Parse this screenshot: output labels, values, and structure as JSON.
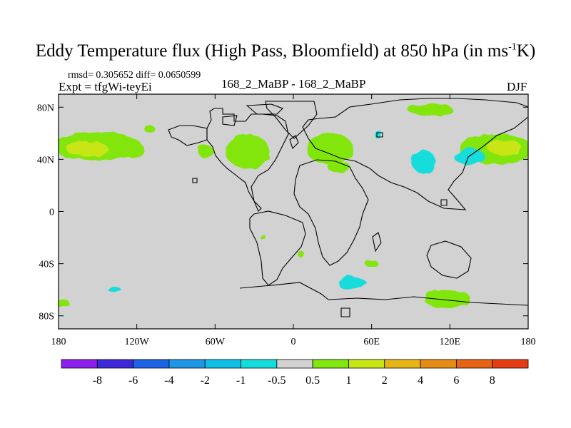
{
  "chart_data": {
    "type": "heatmap",
    "title": "Eddy Temperature flux (High Pass, Bloomfield) at 850 hPa (in ms",
    "title_superscript": "-1",
    "title_suffix": "K)",
    "stats_line": "rmsd= 0.305652 diff= 0.0650599",
    "expt_line": "Expt = tfgWi-teyEi",
    "center_label": "168_2_MaBP - 168_2_MaBP",
    "season_label": "DJF",
    "x_ticks": [
      {
        "value": -180,
        "label": "180"
      },
      {
        "value": -120,
        "label": "120W"
      },
      {
        "value": -60,
        "label": "60W"
      },
      {
        "value": 0,
        "label": "0"
      },
      {
        "value": 60,
        "label": "60E"
      },
      {
        "value": 120,
        "label": "120E"
      },
      {
        "value": 180,
        "label": "180"
      }
    ],
    "y_ticks": [
      {
        "value": 80,
        "label": "80N"
      },
      {
        "value": 40,
        "label": "40N"
      },
      {
        "value": 0,
        "label": "0"
      },
      {
        "value": -40,
        "label": "40S"
      },
      {
        "value": -80,
        "label": "80S"
      }
    ],
    "xlim": [
      -180,
      180
    ],
    "ylim": [
      -90,
      90
    ],
    "colorbar": {
      "labels": [
        "-8",
        "-6",
        "-4",
        "-2",
        "-1",
        "-0.5",
        "0.5",
        "1",
        "2",
        "4",
        "6",
        "8"
      ],
      "colors": [
        "#8c1eee",
        "#3c28d8",
        "#1e64e6",
        "#1e96e6",
        "#0fbee6",
        "#14dcdc",
        "#d2d2d2",
        "#82e60f",
        "#c8e614",
        "#e6b414",
        "#e68c14",
        "#e66414",
        "#e63c14"
      ]
    },
    "fields": [
      {
        "level": "1",
        "color": "#82e60f",
        "lon": -150,
        "lat": 50,
        "rx": 34,
        "ry": 11
      },
      {
        "level": "2",
        "color": "#c8e614",
        "lon": -158,
        "lat": 48,
        "rx": 16,
        "ry": 6
      },
      {
        "level": "1",
        "color": "#82e60f",
        "lon": -122,
        "lat": 47,
        "rx": 8,
        "ry": 6
      },
      {
        "level": "1",
        "color": "#82e60f",
        "lon": -110,
        "lat": 63,
        "rx": 4,
        "ry": 3
      },
      {
        "level": "1",
        "color": "#82e60f",
        "lon": -67,
        "lat": 46,
        "rx": 6,
        "ry": 5
      },
      {
        "level": "1",
        "color": "#82e60f",
        "lon": -35,
        "lat": 46,
        "rx": 17,
        "ry": 13
      },
      {
        "level": "1",
        "color": "#82e60f",
        "lon": 28,
        "lat": 48,
        "rx": 18,
        "ry": 12
      },
      {
        "level": "1",
        "color": "#82e60f",
        "lon": 35,
        "lat": 34,
        "rx": 9,
        "ry": 4
      },
      {
        "level": "1",
        "color": "#82e60f",
        "lon": 105,
        "lat": 78,
        "rx": 17,
        "ry": 5
      },
      {
        "level": "1",
        "color": "#82e60f",
        "lon": 155,
        "lat": 48,
        "rx": 28,
        "ry": 12
      },
      {
        "level": "2",
        "color": "#c8e614",
        "lon": 162,
        "lat": 49,
        "rx": 13,
        "ry": 6
      },
      {
        "level": "-0.5",
        "color": "#14dcdc",
        "lon": 100,
        "lat": 38,
        "rx": 9,
        "ry": 9
      },
      {
        "level": "-0.5",
        "color": "#14dcdc",
        "lon": 135,
        "lat": 42,
        "rx": 12,
        "ry": 6
      },
      {
        "level": "-0.5",
        "color": "#14dcdc",
        "lon": 65,
        "lat": 59,
        "rx": 3,
        "ry": 3
      },
      {
        "level": "-0.5",
        "color": "#14dcdc",
        "lon": 45,
        "lat": -55,
        "rx": 11,
        "ry": 5
      },
      {
        "level": "1",
        "color": "#82e60f",
        "lon": 60,
        "lat": -40,
        "rx": 5,
        "ry": 3
      },
      {
        "level": "1",
        "color": "#82e60f",
        "lon": 6,
        "lat": -33,
        "rx": 3,
        "ry": 2
      },
      {
        "level": "1",
        "color": "#82e60f",
        "lon": -23,
        "lat": -20,
        "rx": 2,
        "ry": 2
      },
      {
        "level": "-0.5",
        "color": "#14dcdc",
        "lon": -137,
        "lat": -60,
        "rx": 5,
        "ry": 2
      },
      {
        "level": "1",
        "color": "#82e60f",
        "lon": 118,
        "lat": -67,
        "rx": 18,
        "ry": 7
      },
      {
        "level": "1",
        "color": "#82e60f",
        "lon": -176,
        "lat": -71,
        "rx": 5,
        "ry": 3
      }
    ]
  }
}
